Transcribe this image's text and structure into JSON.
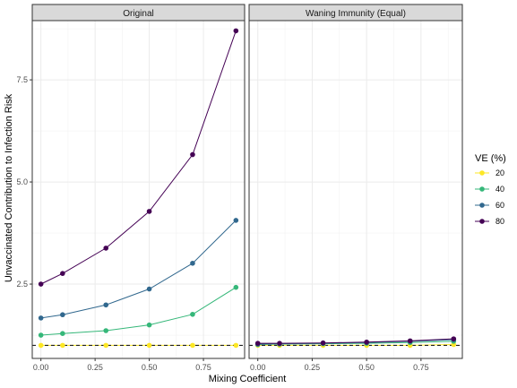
{
  "chart_data": {
    "type": "line",
    "xlabel": "Mixing Coefficient",
    "ylabel": "Unvaccinated Contribution to Infection Risk",
    "xlim": [
      -0.04,
      0.94
    ],
    "ylim": [
      0.68,
      8.95
    ],
    "x_ticks": [
      0,
      0.25,
      0.5,
      0.75
    ],
    "x_tick_labels": [
      "0.00",
      "0.25",
      "0.50",
      "0.75"
    ],
    "y_ticks": [
      2.5,
      5.0,
      7.5
    ],
    "y_tick_labels": [
      "2.5",
      "5.0",
      "7.5"
    ],
    "grid": true,
    "reference_line": {
      "y": 1.0,
      "style": "dashed",
      "color": "#222222"
    },
    "legend": {
      "title": "VE (%)",
      "position": "right",
      "entries": [
        {
          "label": "20",
          "color": "#FDE725"
        },
        {
          "label": "40",
          "color": "#35B779"
        },
        {
          "label": "60",
          "color": "#31688E"
        },
        {
          "label": "80",
          "color": "#440154"
        }
      ]
    },
    "x": [
      0,
      0.1,
      0.3,
      0.5,
      0.7,
      0.9
    ],
    "panels": [
      {
        "strip": "Original",
        "series": [
          {
            "name": "20",
            "color": "#FDE725",
            "values": [
              1.0,
              1.0,
              1.0,
              1.0,
              1.0,
              1.0
            ]
          },
          {
            "name": "40",
            "color": "#35B779",
            "values": [
              1.25,
              1.29,
              1.36,
              1.5,
              1.76,
              2.42
            ]
          },
          {
            "name": "60",
            "color": "#31688E",
            "values": [
              1.67,
              1.75,
              1.99,
              2.38,
              3.01,
              4.06
            ]
          },
          {
            "name": "80",
            "color": "#440154",
            "values": [
              2.5,
              2.76,
              3.38,
              4.28,
              5.67,
              8.7
            ]
          }
        ]
      },
      {
        "strip": "Waning Immunity (Equal)",
        "series": [
          {
            "name": "20",
            "color": "#FDE725",
            "values": [
              1.0,
              1.0,
              1.0,
              1.0,
              1.0,
              1.02
            ]
          },
          {
            "name": "40",
            "color": "#35B779",
            "values": [
              1.02,
              1.03,
              1.04,
              1.05,
              1.07,
              1.1
            ]
          },
          {
            "name": "60",
            "color": "#31688E",
            "values": [
              1.03,
              1.04,
              1.05,
              1.07,
              1.1,
              1.14
            ]
          },
          {
            "name": "80",
            "color": "#440154",
            "values": [
              1.05,
              1.05,
              1.06,
              1.08,
              1.11,
              1.16
            ]
          }
        ]
      }
    ]
  }
}
